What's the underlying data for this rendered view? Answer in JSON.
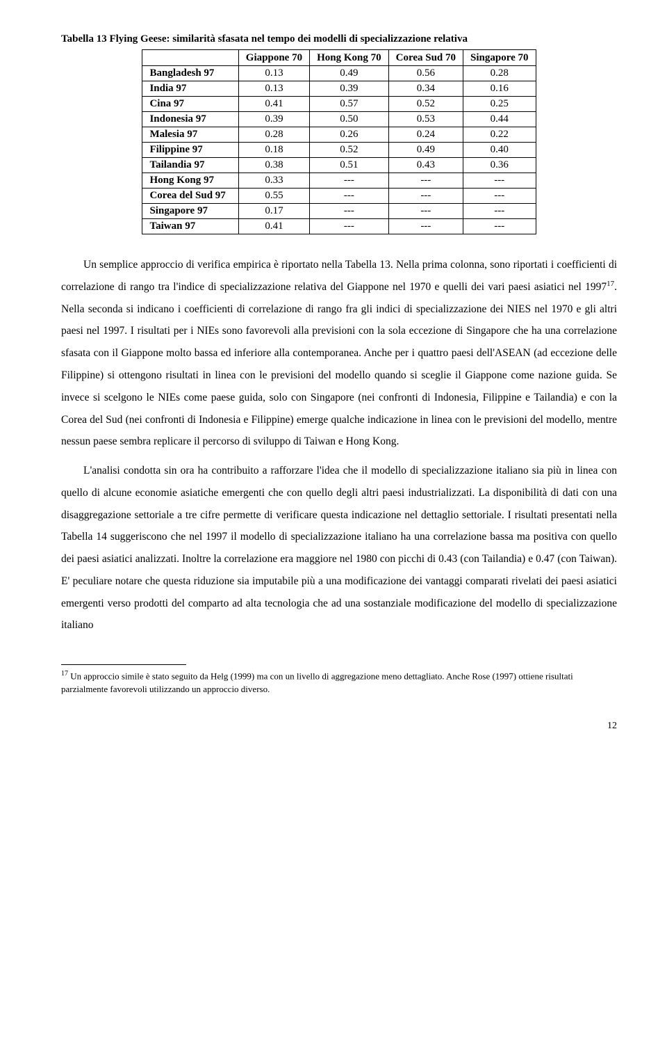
{
  "table": {
    "title": "Tabella 13 Flying Geese: similarità sfasata nel tempo dei modelli di specializzazione relativa",
    "columns": [
      "Giappone 70",
      "Hong Kong 70",
      "Corea Sud 70",
      "Singapore 70"
    ],
    "rows": [
      {
        "label": "Bangladesh 97",
        "cells": [
          "0.13",
          "0.49",
          "0.56",
          "0.28"
        ]
      },
      {
        "label": "India 97",
        "cells": [
          "0.13",
          "0.39",
          "0.34",
          "0.16"
        ]
      },
      {
        "label": "Cina 97",
        "cells": [
          "0.41",
          "0.57",
          "0.52",
          "0.25"
        ]
      },
      {
        "label": "Indonesia 97",
        "cells": [
          "0.39",
          "0.50",
          "0.53",
          "0.44"
        ]
      },
      {
        "label": "Malesia 97",
        "cells": [
          "0.28",
          "0.26",
          "0.24",
          "0.22"
        ]
      },
      {
        "label": "Filippine 97",
        "cells": [
          "0.18",
          "0.52",
          "0.49",
          "0.40"
        ]
      },
      {
        "label": "Tailandia 97",
        "cells": [
          "0.38",
          "0.51",
          "0.43",
          "0.36"
        ]
      },
      {
        "label": "Hong Kong 97",
        "cells": [
          "0.33",
          "---",
          "---",
          "---"
        ]
      },
      {
        "label": "Corea del Sud 97",
        "cells": [
          "0.55",
          "---",
          "---",
          "---"
        ]
      },
      {
        "label": "Singapore 97",
        "cells": [
          "0.17",
          "---",
          "---",
          "---"
        ]
      },
      {
        "label": "Taiwan 97",
        "cells": [
          "0.41",
          "---",
          "---",
          "---"
        ]
      }
    ]
  },
  "paragraphs": {
    "p1a": "Un semplice approccio di verifica empirica è riportato nella Tabella 13. Nella prima colonna, sono riportati i coefficienti di correlazione di rango tra l'indice di specializzazione relativa del Giappone nel 1970 e quelli dei vari paesi asiatici nel 1997",
    "p1sup": "17",
    "p1b": ". Nella seconda si indicano i coefficienti di correlazione di rango fra gli indici di specializzazione dei NIES nel 1970 e gli altri paesi nel 1997. I risultati per i NIEs sono favorevoli alla previsioni con la sola eccezione di Singapore che ha una correlazione sfasata con il Giappone molto bassa ed inferiore alla contemporanea. Anche per i quattro paesi dell'ASEAN (ad eccezione delle Filippine) si ottengono risultati in linea con le previsioni del modello quando si sceglie il Giappone come nazione guida. Se invece si scelgono le NIEs come paese guida, solo con Singapore (nei confronti di Indonesia, Filippine e Tailandia) e con la Corea del Sud (nei confronti di Indonesia e Filippine) emerge qualche indicazione in linea con le previsioni del modello, mentre nessun paese sembra replicare il percorso di sviluppo di Taiwan e Hong Kong.",
    "p2": "L'analisi condotta sin ora ha contribuito a rafforzare l'idea che il modello di specializzazione italiano sia più in linea con quello di alcune economie asiatiche emergenti che con quello degli altri paesi industrializzati. La disponibilità di dati con una disaggregazione settoriale a tre cifre permette di verificare questa indicazione nel dettaglio settoriale. I risultati presentati nella Tabella 14 suggeriscono che nel 1997 il modello di specializzazione italiano ha una correlazione bassa ma positiva con quello dei paesi asiatici analizzati. Inoltre la correlazione era maggiore nel 1980 con picchi di 0.43 (con Tailandia) e 0.47 (con Taiwan). E' peculiare notare che questa riduzione sia imputabile più a una modificazione dei vantaggi comparati rivelati dei paesi asiatici emergenti verso prodotti del comparto ad alta tecnologia che ad una sostanziale modificazione del modello di specializzazione italiano"
  },
  "footnote": {
    "num": "17",
    "text": " Un approccio simile è stato seguito da Helg (1999) ma con un livello di aggregazione meno dettagliato. Anche Rose (1997) ottiene risultati parzialmente favorevoli utilizzando un approccio diverso."
  },
  "pagenum": "12"
}
